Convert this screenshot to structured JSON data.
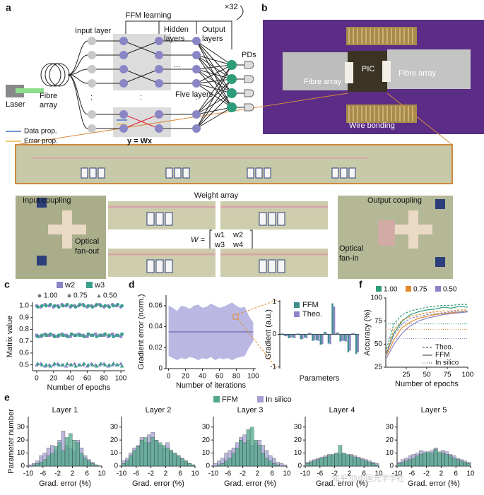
{
  "panel_letters": [
    "a",
    "b",
    "c",
    "d",
    "e",
    "f"
  ],
  "diagram": {
    "title": "FFM learning",
    "repeat": "×32",
    "input_layer": "Input layer",
    "hidden_layers": [
      "Hidden",
      "layers"
    ],
    "output_layers": [
      "Output",
      "layers"
    ],
    "pds": "PDs",
    "five_layers": "Five layers",
    "ellipsis": "...",
    "vdots": ":",
    "laser": "Laser",
    "fibre_array": [
      "Fibre",
      "array"
    ],
    "data_prop": "Data prop.",
    "error_prop": "Error prop.",
    "equation": "y = Wx"
  },
  "photo": {
    "pic": "PIC",
    "fibre_array_left": "Fibre array",
    "fibre_array_right": "Fibre array",
    "wire_bonding": "Wire bonding",
    "input_coupling": "Input coupling",
    "optical_fan_out": [
      "Optical",
      "fan-out"
    ],
    "weight_array": "Weight array",
    "matrix_lhs": "W =",
    "matrix": [
      [
        "w1",
        "w2"
      ],
      [
        "w3",
        "w4"
      ]
    ],
    "output_coupling": "Output coupling",
    "optical_fan_in": [
      "Optical",
      "fan-in"
    ]
  },
  "watermark": "知乎 @中国光学学社",
  "chart_data": [
    {
      "type": "scatter",
      "xlabel": "Number of epochs",
      "ylabel": "Matrix value",
      "x": [
        0,
        5,
        10,
        15,
        20,
        25,
        30,
        35,
        40,
        45,
        50,
        55,
        60,
        65,
        70,
        75,
        80,
        85,
        90,
        95,
        100
      ],
      "markers": [
        {
          "label": "1.00",
          "shape": "circle"
        },
        {
          "label": "0.75",
          "shape": "square"
        },
        {
          "label": "0.50",
          "shape": "triangle"
        }
      ],
      "series": [
        {
          "name": "w2",
          "color": "#8a84c6",
          "targets": [
            {
              "values": [
                1.0,
                0.99,
                1.01,
                1.0,
                0.99,
                1.0,
                1.01,
                1.0,
                0.99,
                1.0,
                1.0,
                1.01,
                0.99,
                1.0,
                1.0,
                1.01,
                0.99,
                1.0,
                1.01,
                1.0,
                0.99
              ]
            },
            {
              "values": [
                0.75,
                0.74,
                0.76,
                0.75,
                0.75,
                0.74,
                0.76,
                0.75,
                0.74,
                0.75,
                0.76,
                0.75,
                0.74,
                0.75,
                0.76,
                0.75,
                0.75,
                0.74,
                0.76,
                0.75,
                0.74
              ]
            },
            {
              "values": [
                0.5,
                0.51,
                0.49,
                0.5,
                0.5,
                0.51,
                0.5,
                0.49,
                0.5,
                0.51,
                0.5,
                0.5,
                0.49,
                0.51,
                0.5,
                0.5,
                0.51,
                0.49,
                0.5,
                0.5,
                0.51
              ]
            }
          ]
        },
        {
          "name": "w3",
          "color": "#3a9e8a",
          "targets": [
            {
              "values": [
                0.99,
                1.0,
                1.0,
                1.01,
                1.0,
                0.99,
                1.0,
                1.01,
                1.0,
                0.99,
                1.01,
                1.0,
                1.0,
                0.99,
                1.01,
                1.0,
                1.0,
                0.99,
                1.0,
                1.01,
                1.0
              ]
            },
            {
              "values": [
                0.74,
                0.75,
                0.75,
                0.76,
                0.74,
                0.75,
                0.75,
                0.74,
                0.76,
                0.75,
                0.75,
                0.74,
                0.76,
                0.75,
                0.74,
                0.75,
                0.76,
                0.75,
                0.74,
                0.75,
                0.76
              ]
            },
            {
              "values": [
                0.51,
                0.5,
                0.5,
                0.49,
                0.51,
                0.5,
                0.5,
                0.51,
                0.5,
                0.49,
                0.5,
                0.51,
                0.5,
                0.5,
                0.49,
                0.51,
                0.5,
                0.5,
                0.51,
                0.5,
                0.49
              ]
            }
          ]
        }
      ],
      "xlim": [
        -5,
        105
      ],
      "xticks": [
        0,
        20,
        40,
        60,
        80,
        100
      ],
      "ylim": [
        0.45,
        1.03
      ],
      "yticks": [
        0.5,
        0.6,
        0.7,
        0.8,
        0.9,
        {
          "value": 1,
          "label": "1.0"
        }
      ]
    },
    {
      "type": "band",
      "xlabel": "Number of iterations",
      "ylabel": "Gradient error (norm.)",
      "x": [
        0,
        5,
        10,
        15,
        20,
        25,
        30,
        35,
        40,
        45,
        50,
        55,
        60,
        65,
        70,
        75,
        80,
        85,
        90,
        95,
        100
      ],
      "series": [
        {
          "color": "#a9a6dc",
          "line_color": "#7a76b8",
          "upper": [
            0.06,
            0.058,
            0.055,
            0.06,
            0.059,
            0.057,
            0.06,
            0.061,
            0.058,
            0.059,
            0.062,
            0.06,
            0.058,
            0.059,
            0.061,
            0.063,
            0.06,
            0.058,
            0.059,
            0.05,
            0.044
          ],
          "lower": [
            0.012,
            0.01,
            0.008,
            0.01,
            0.009,
            0.011,
            0.01,
            0.008,
            0.01,
            0.009,
            0.011,
            0.008,
            0.01,
            0.009,
            0.01,
            0.008,
            0.01,
            0.011,
            0.012,
            0.02,
            0.026
          ],
          "values": [
            0.035,
            0.035,
            0.035,
            0.035,
            0.035,
            0.035,
            0.035,
            0.035,
            0.035,
            0.035,
            0.035,
            0.035,
            0.035,
            0.035,
            0.035,
            0.035,
            0.035,
            0.035,
            0.035,
            0.035,
            0.035
          ]
        }
      ],
      "xlim": [
        -3,
        103
      ],
      "xticks": [
        0,
        20,
        40,
        60,
        80,
        100
      ],
      "ylim": [
        0,
        0.07
      ],
      "yticks": [
        0,
        0.02,
        0.04,
        0.06
      ]
    },
    {
      "type": "bar",
      "xlabel": "Parameters",
      "ylabel": "Gradient (a.u.)",
      "series": [
        {
          "name": "FFM",
          "color": "#3e8f8c",
          "values": [
            0.02,
            -0.05,
            -0.12,
            -0.1,
            0.02,
            -0.15,
            -0.1,
            0.04,
            -0.2,
            -0.18,
            -0.32,
            0.08,
            -0.28,
            0.95,
            0.05,
            -0.22,
            -0.2,
            -0.55,
            0.03,
            -0.6
          ]
        },
        {
          "name": "Theo.",
          "color": "#8b86c9",
          "values": [
            0.03,
            -0.06,
            -0.1,
            -0.12,
            0.03,
            -0.14,
            -0.12,
            0.05,
            -0.18,
            -0.2,
            -0.3,
            0.06,
            -0.3,
            0.85,
            0.06,
            -0.2,
            -0.22,
            -0.5,
            0.04,
            -0.55
          ]
        }
      ],
      "ylim": [
        -1.05,
        1.05
      ],
      "yticks": [
        -1,
        0,
        1
      ]
    },
    {
      "type": "line",
      "xlabel": "Number of epochs",
      "ylabel": "Accuracy (%)",
      "x": [
        1,
        10,
        20,
        30,
        40,
        50,
        60,
        70,
        80,
        90,
        100
      ],
      "line_styles": [
        {
          "name": "Theo.",
          "dash": "3,2"
        },
        {
          "name": "FFM",
          "dash": "none"
        },
        {
          "name": "In silico",
          "dash": "1,2"
        }
      ],
      "series": [
        {
          "name": "1.00",
          "color": "#2e9c7a",
          "theo": [
            45,
            72,
            82,
            86,
            88,
            90,
            91,
            92,
            92,
            93,
            93
          ],
          "ffm": [
            40,
            62,
            75,
            82,
            85,
            87,
            88,
            90,
            89,
            91,
            90
          ],
          "in_silico": 72
        },
        {
          "name": "0.75",
          "color": "#e08a2c",
          "theo": [
            42,
            65,
            76,
            80,
            82,
            84,
            85,
            86,
            86,
            87,
            87
          ],
          "ffm": [
            38,
            55,
            68,
            74,
            78,
            80,
            82,
            83,
            84,
            85,
            85
          ],
          "in_silico": 66
        },
        {
          "name": "0.50",
          "color": "#8a84c6",
          "theo": [
            40,
            60,
            72,
            78,
            80,
            82,
            83,
            84,
            85,
            85,
            86
          ],
          "ffm": [
            35,
            50,
            62,
            70,
            75,
            78,
            80,
            82,
            83,
            84,
            85
          ],
          "in_silico": 56
        }
      ],
      "xlim": [
        0,
        100
      ],
      "xticks": [
        25,
        50,
        75,
        100
      ],
      "ylim": [
        25,
        100
      ],
      "yticks": [
        25,
        50,
        75,
        100
      ]
    },
    {
      "type": "histogram",
      "xlabel": "Grad. error (%)",
      "ylabel": "Parameter number",
      "series": [
        {
          "name": "FFM",
          "color": "#4fa98a"
        },
        {
          "name": "In silico",
          "color": "#a39fd2"
        }
      ],
      "bins": [
        -10,
        -9,
        -8,
        -7,
        -6,
        -5,
        -4,
        -3,
        -2,
        -1,
        0,
        1,
        2,
        3,
        4,
        5,
        6,
        7,
        8,
        9,
        10
      ],
      "panels": [
        {
          "title": "Layer 1",
          "series": [
            {
              "values": [
                0,
                1,
                2,
                3,
                5,
                8,
                10,
                15,
                18,
                12,
                22,
                25,
                20,
                18,
                10,
                6,
                4,
                2,
                1,
                0
              ]
            },
            {
              "values": [
                1,
                2,
                4,
                8,
                10,
                14,
                16,
                12,
                20,
                27,
                16,
                14,
                12,
                20,
                14,
                8,
                5,
                3,
                1,
                0
              ]
            }
          ]
        },
        {
          "title": "Layer 2",
          "series": [
            {
              "values": [
                2,
                4,
                8,
                12,
                15,
                20,
                22,
                18,
                22,
                20,
                18,
                16,
                14,
                12,
                10,
                8,
                6,
                4,
                2,
                1
              ]
            },
            {
              "values": [
                4,
                6,
                10,
                14,
                16,
                22,
                18,
                24,
                26,
                20,
                16,
                14,
                18,
                12,
                10,
                8,
                6,
                4,
                2,
                1
              ]
            }
          ]
        },
        {
          "title": "Layer 3",
          "series": [
            {
              "values": [
                0,
                1,
                2,
                4,
                6,
                10,
                14,
                20,
                18,
                28,
                30,
                20,
                16,
                10,
                6,
                4,
                2,
                1,
                0,
                0
              ]
            },
            {
              "values": [
                2,
                4,
                6,
                10,
                12,
                14,
                18,
                22,
                24,
                20,
                16,
                18,
                20,
                16,
                12,
                8,
                6,
                3,
                2,
                1
              ]
            }
          ]
        },
        {
          "title": "Layer 4",
          "series": [
            {
              "values": [
                2,
                3,
                4,
                5,
                6,
                7,
                8,
                9,
                10,
                16,
                10,
                9,
                8,
                7,
                6,
                5,
                4,
                3,
                2,
                1
              ]
            },
            {
              "values": [
                3,
                4,
                5,
                6,
                7,
                8,
                9,
                8,
                10,
                9,
                10,
                8,
                9,
                8,
                7,
                6,
                5,
                4,
                3,
                2
              ]
            }
          ]
        },
        {
          "title": "Layer 5",
          "series": [
            {
              "values": [
                2,
                3,
                4,
                5,
                6,
                8,
                9,
                10,
                11,
                10,
                13,
                11,
                10,
                9,
                8,
                6,
                5,
                4,
                3,
                2
              ]
            },
            {
              "values": [
                3,
                5,
                6,
                8,
                9,
                10,
                12,
                11,
                10,
                12,
                14,
                10,
                12,
                11,
                9,
                8,
                6,
                5,
                4,
                3
              ]
            }
          ]
        }
      ],
      "xlim": [
        -10,
        10
      ],
      "xticks": [
        -10,
        -6,
        -2,
        2,
        6,
        10
      ],
      "ylim": [
        0,
        38
      ],
      "yticks": [
        0,
        10,
        20,
        30
      ]
    }
  ]
}
